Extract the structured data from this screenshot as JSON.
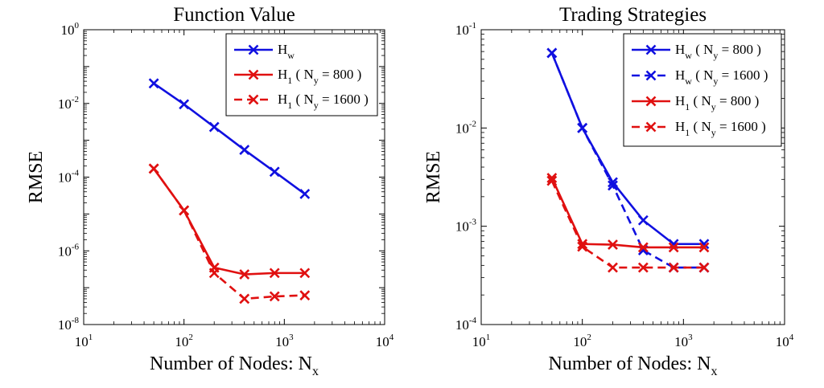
{
  "chart_data": [
    {
      "type": "line",
      "title": "Function Value",
      "xlabel": "Number of Nodes: N",
      "xlabel_sub": "x",
      "ylabel": "RMSE",
      "xscale": "log",
      "yscale": "log",
      "xlim": [
        10,
        10000
      ],
      "ylim": [
        1e-08,
        1
      ],
      "x_ticks": [
        {
          "base": "10",
          "exp": "1"
        },
        {
          "base": "10",
          "exp": "2"
        },
        {
          "base": "10",
          "exp": "3"
        },
        {
          "base": "10",
          "exp": "4"
        }
      ],
      "y_ticks": [
        {
          "base": "10",
          "exp": "0"
        },
        {
          "base": "10",
          "exp": "-2"
        },
        {
          "base": "10",
          "exp": "-4"
        },
        {
          "base": "10",
          "exp": "-6"
        },
        {
          "base": "10",
          "exp": "-8"
        }
      ],
      "legend_position": "top-right",
      "grid": false,
      "series": [
        {
          "legend": [
            {
              "t": "H"
            },
            {
              "t": "w",
              "sub": true
            }
          ],
          "color": "#1010e0",
          "dash": false,
          "marker": "x",
          "x": [
            50,
            100,
            200,
            400,
            800,
            1600
          ],
          "y": [
            0.035,
            0.0095,
            0.0023,
            0.00055,
            0.00014,
            3.5e-05
          ]
        },
        {
          "legend": [
            {
              "t": "H"
            },
            {
              "t": "1",
              "sub": true
            },
            {
              "t": " ( N"
            },
            {
              "t": "y",
              "sub": true
            },
            {
              "t": " = 800 )"
            }
          ],
          "color": "#e01010",
          "dash": false,
          "marker": "x",
          "x": [
            50,
            100,
            200,
            400,
            800,
            1600
          ],
          "y": [
            0.00017,
            1.25e-05,
            3.5e-07,
            2.3e-07,
            2.5e-07,
            2.5e-07
          ]
        },
        {
          "legend": [
            {
              "t": "H"
            },
            {
              "t": "1",
              "sub": true
            },
            {
              "t": " ( N"
            },
            {
              "t": "y",
              "sub": true
            },
            {
              "t": " = 1600 )"
            }
          ],
          "color": "#e01010",
          "dash": true,
          "marker": "x",
          "x": [
            50,
            100,
            200,
            400,
            800,
            1600
          ],
          "y": [
            0.00017,
            1.25e-05,
            2.5e-07,
            5e-08,
            5.8e-08,
            6.2e-08
          ]
        }
      ]
    },
    {
      "type": "line",
      "title": "Trading Strategies",
      "xlabel": "Number of Nodes: N",
      "xlabel_sub": "x",
      "ylabel": "RMSE",
      "xscale": "log",
      "yscale": "log",
      "xlim": [
        10,
        10000
      ],
      "ylim": [
        0.0001,
        0.1
      ],
      "x_ticks": [
        {
          "base": "10",
          "exp": "1"
        },
        {
          "base": "10",
          "exp": "2"
        },
        {
          "base": "10",
          "exp": "3"
        },
        {
          "base": "10",
          "exp": "4"
        }
      ],
      "y_ticks": [
        {
          "base": "10",
          "exp": "-1"
        },
        {
          "base": "10",
          "exp": "-2"
        },
        {
          "base": "10",
          "exp": "-3"
        },
        {
          "base": "10",
          "exp": "-4"
        }
      ],
      "legend_position": "top-right",
      "grid": false,
      "series": [
        {
          "legend": [
            {
              "t": "H"
            },
            {
              "t": "w",
              "sub": true
            },
            {
              "t": " ( N"
            },
            {
              "t": "y",
              "sub": true
            },
            {
              "t": " = 800 )"
            }
          ],
          "color": "#1010e0",
          "dash": false,
          "marker": "x",
          "x": [
            50,
            100,
            200,
            400,
            800,
            1600
          ],
          "y": [
            0.058,
            0.01,
            0.0028,
            0.00115,
            0.00066,
            0.00066
          ]
        },
        {
          "legend": [
            {
              "t": "H"
            },
            {
              "t": "w",
              "sub": true
            },
            {
              "t": " ( N"
            },
            {
              "t": "y",
              "sub": true
            },
            {
              "t": " = 1600 )"
            }
          ],
          "color": "#1010e0",
          "dash": true,
          "marker": "x",
          "x": [
            50,
            100,
            200,
            400,
            800,
            1600
          ],
          "y": [
            0.058,
            0.01,
            0.0026,
            0.00057,
            0.00038,
            0.00038
          ]
        },
        {
          "legend": [
            {
              "t": "H"
            },
            {
              "t": "1",
              "sub": true
            },
            {
              "t": " ( N"
            },
            {
              "t": "y",
              "sub": true
            },
            {
              "t": " = 800 )"
            }
          ],
          "color": "#e01010",
          "dash": false,
          "marker": "x",
          "x": [
            50,
            100,
            200,
            400,
            800,
            1600
          ],
          "y": [
            0.0031,
            0.00066,
            0.00065,
            0.00061,
            0.00061,
            0.00061
          ]
        },
        {
          "legend": [
            {
              "t": "H"
            },
            {
              "t": "1",
              "sub": true
            },
            {
              "t": " ( N"
            },
            {
              "t": "y",
              "sub": true
            },
            {
              "t": " = 1600 )"
            }
          ],
          "color": "#e01010",
          "dash": true,
          "marker": "x",
          "x": [
            50,
            100,
            200,
            400,
            800,
            1600
          ],
          "y": [
            0.0029,
            0.00062,
            0.00038,
            0.00038,
            0.00038,
            0.00038
          ]
        }
      ]
    }
  ]
}
